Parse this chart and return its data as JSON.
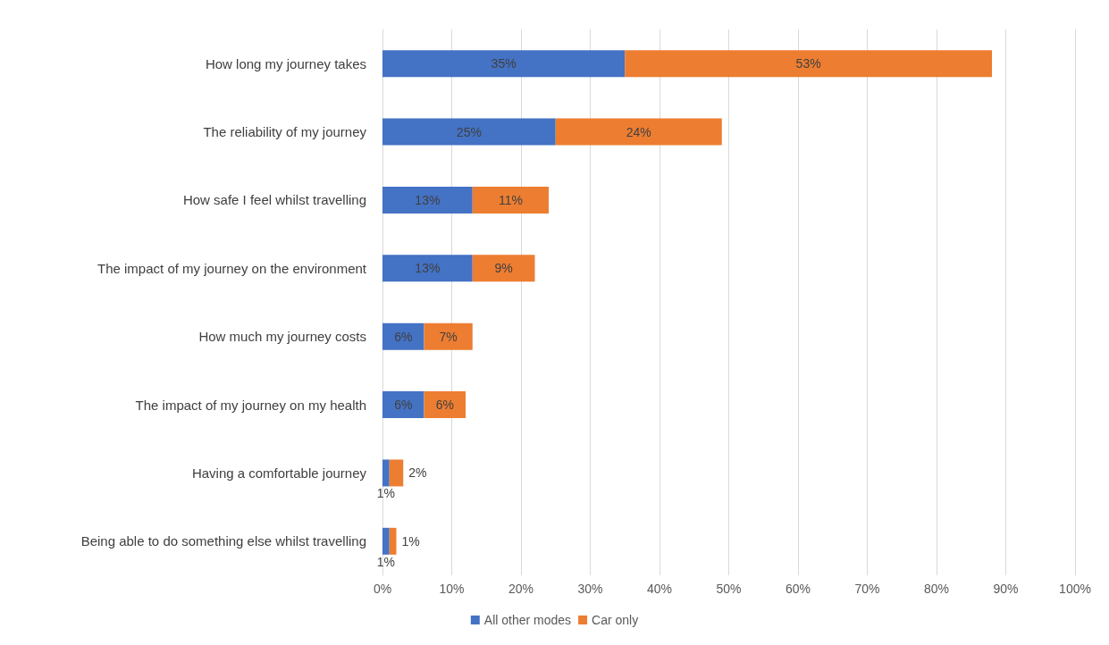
{
  "chart_data": {
    "type": "bar",
    "orientation": "horizontal",
    "stacked": true,
    "grid": "x",
    "legend": "bottom",
    "categories": [
      "How long my journey takes",
      "The reliability of my journey",
      "How safe I feel whilst travelling",
      "The impact of my journey on the environment",
      "How much my journey costs",
      "The impact of my journey on my health",
      "Having a comfortable journey",
      "Being able to do something else whilst travelling"
    ],
    "series": [
      {
        "name": "All other modes",
        "color": "#4472c4",
        "values": [
          35,
          25,
          13,
          13,
          6,
          6,
          1,
          1
        ],
        "value_labels": [
          "35%",
          "25%",
          "13%",
          "13%",
          "6%",
          "6%",
          "1%",
          "1%"
        ]
      },
      {
        "name": "Car only",
        "color": "#ed7d31",
        "values": [
          53,
          24,
          11,
          9,
          7,
          6,
          2,
          1
        ],
        "value_labels": [
          "53%",
          "24%",
          "11%",
          "9%",
          "7%",
          "6%",
          "2%",
          "1%"
        ]
      }
    ],
    "xlim": [
      0,
      100
    ],
    "xticks": [
      {
        "value": 0,
        "label": "0%"
      },
      {
        "value": 10,
        "label": "10%"
      },
      {
        "value": 20,
        "label": "20%"
      },
      {
        "value": 30,
        "label": "30%"
      },
      {
        "value": 40,
        "label": "40%"
      },
      {
        "value": 50,
        "label": "50%"
      },
      {
        "value": 60,
        "label": "60%"
      },
      {
        "value": 70,
        "label": "70%"
      },
      {
        "value": 80,
        "label": "80%"
      },
      {
        "value": 90,
        "label": "90%"
      },
      {
        "value": 100,
        "label": "100%"
      }
    ]
  }
}
